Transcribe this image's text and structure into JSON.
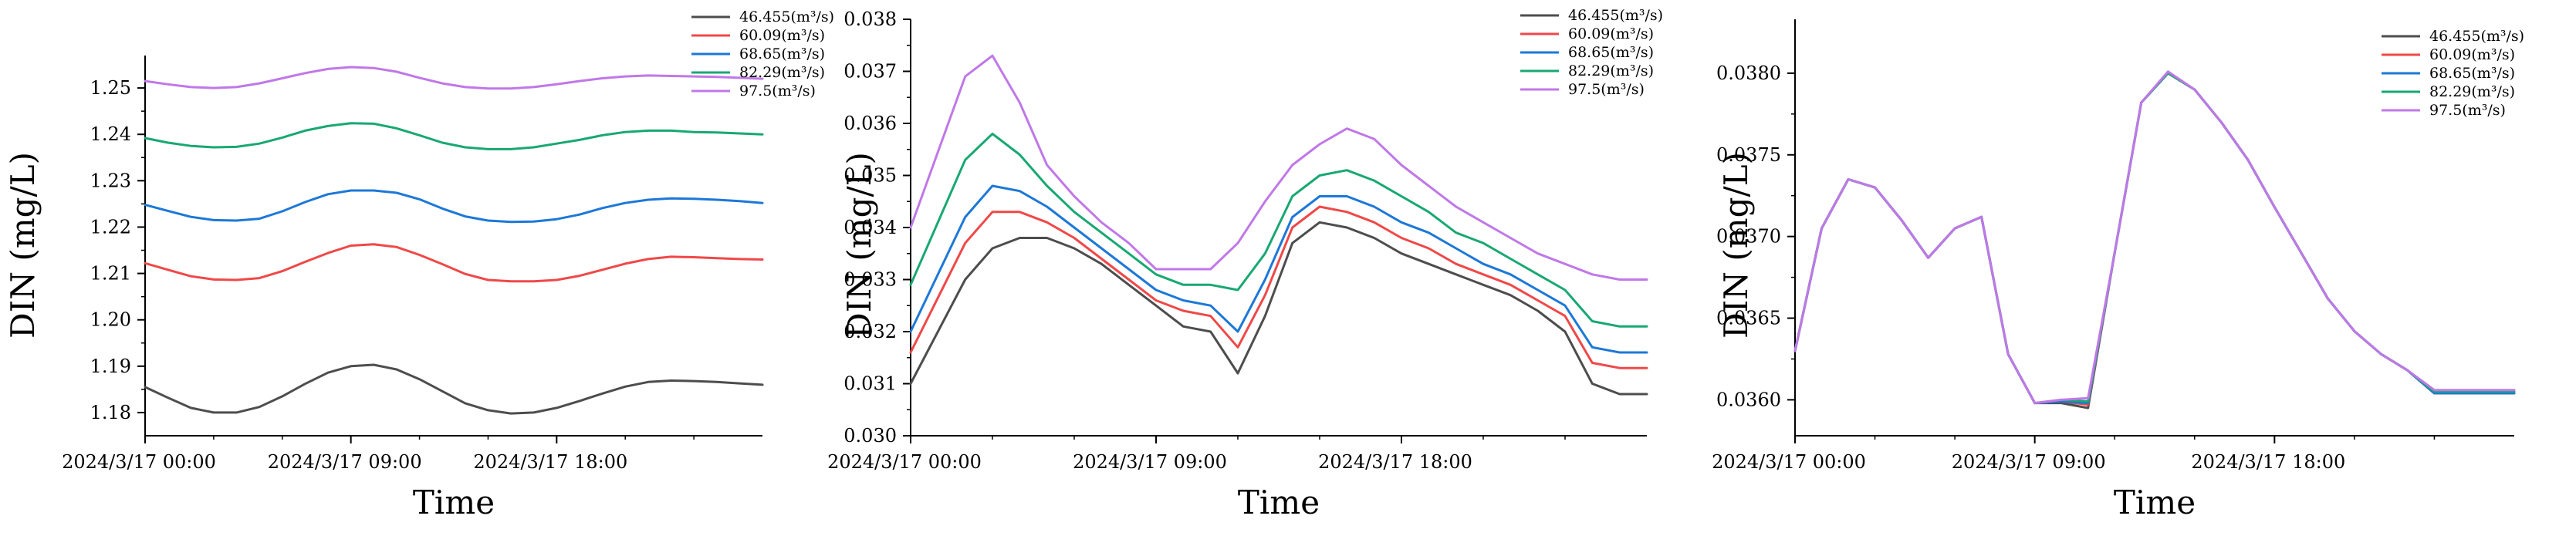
{
  "colors": {
    "s1": "#4d4d4d",
    "s2": "#f04848",
    "s3": "#1c78d8",
    "s4": "#18a872",
    "s5": "#c078e8"
  },
  "chart_data": [
    {
      "type": "line",
      "xlabel": "Time",
      "ylabel": "DIN (mg/L)",
      "ylim": [
        1.175,
        1.257
      ],
      "yticks": [
        1.18,
        1.19,
        1.2,
        1.21,
        1.22,
        1.23,
        1.24,
        1.25
      ],
      "ytick_labels": [
        "1.18",
        "1.19",
        "1.20",
        "1.21",
        "1.22",
        "1.23",
        "1.24",
        "1.25"
      ],
      "xlim": [
        0,
        27
      ],
      "xticks": [
        0,
        9,
        18
      ],
      "xtick_labels": [
        "2024/3/17  00:00",
        "2024/3/17  09:00",
        "2024/3/17  18:00"
      ],
      "legend_position": "top-right",
      "grid": false,
      "x": [
        0,
        1,
        2,
        3,
        4,
        5,
        6,
        7,
        8,
        9,
        10,
        11,
        12,
        13,
        14,
        15,
        16,
        17,
        18,
        19,
        20,
        21,
        22,
        23,
        24,
        25,
        26,
        27
      ],
      "series": [
        {
          "name": "46.455(m³/s)",
          "color_key": "s1",
          "values": [
            1.1855,
            1.1832,
            1.181,
            1.18,
            1.18,
            1.1812,
            1.1835,
            1.1862,
            1.1886,
            1.19,
            1.1903,
            1.1893,
            1.1872,
            1.1846,
            1.182,
            1.1805,
            1.1798,
            1.18,
            1.181,
            1.1825,
            1.1841,
            1.1856,
            1.1866,
            1.1869,
            1.1868,
            1.1866,
            1.1863,
            1.186
          ]
        },
        {
          "name": "60.09(m³/s)",
          "color_key": "s2",
          "values": [
            1.2122,
            1.2108,
            1.2094,
            1.2087,
            1.2086,
            1.209,
            1.2105,
            1.2125,
            1.2144,
            1.216,
            1.2163,
            1.2157,
            1.214,
            1.212,
            1.2099,
            1.2086,
            1.2083,
            1.2083,
            1.2086,
            1.2095,
            1.2108,
            1.2121,
            1.2131,
            1.2136,
            1.2135,
            1.2133,
            1.2131,
            1.213
          ]
        },
        {
          "name": "68.65(m³/s)",
          "color_key": "s3",
          "values": [
            1.2248,
            1.2235,
            1.2222,
            1.2215,
            1.2214,
            1.2218,
            1.2234,
            1.2254,
            1.2271,
            1.2279,
            1.2279,
            1.2274,
            1.226,
            1.224,
            1.2223,
            1.2214,
            1.2211,
            1.2212,
            1.2217,
            1.2227,
            1.2241,
            1.2252,
            1.2259,
            1.2262,
            1.2261,
            1.2259,
            1.2256,
            1.2252
          ]
        },
        {
          "name": "82.29(m³/s)",
          "color_key": "s4",
          "values": [
            1.2392,
            1.2382,
            1.2375,
            1.2372,
            1.2373,
            1.238,
            1.2393,
            1.2408,
            1.2418,
            1.2424,
            1.2423,
            1.2413,
            1.2398,
            1.2382,
            1.2372,
            1.2368,
            1.2368,
            1.2372,
            1.238,
            1.2388,
            1.2398,
            1.2405,
            1.2408,
            1.2408,
            1.2405,
            1.2404,
            1.2402,
            1.24
          ]
        },
        {
          "name": "97.5(m³/s)",
          "color_key": "s5",
          "values": [
            1.2515,
            1.2508,
            1.2502,
            1.25,
            1.2502,
            1.251,
            1.2521,
            1.2532,
            1.2541,
            1.2545,
            1.2543,
            1.2535,
            1.2522,
            1.251,
            1.2502,
            1.2499,
            1.2499,
            1.2502,
            1.2508,
            1.2515,
            1.2521,
            1.2525,
            1.2527,
            1.2526,
            1.2525,
            1.2524,
            1.2522,
            1.252
          ]
        }
      ]
    },
    {
      "type": "line",
      "xlabel": "Time",
      "ylabel": "DIN (mg/L)",
      "ylim": [
        0.03,
        0.038
      ],
      "yticks": [
        0.03,
        0.031,
        0.032,
        0.033,
        0.034,
        0.035,
        0.036,
        0.037,
        0.038
      ],
      "ytick_labels": [
        "0.030",
        "0.031",
        "0.032",
        "0.033",
        "0.034",
        "0.035",
        "0.036",
        "0.037",
        "0.038"
      ],
      "xlim": [
        0,
        27
      ],
      "xticks": [
        0,
        9,
        18
      ],
      "xtick_labels": [
        "2024/3/17  00:00",
        "2024/3/17  09:00",
        "2024/3/17  18:00"
      ],
      "legend_position": "top-right",
      "grid": false,
      "x": [
        0,
        2,
        3,
        4,
        5,
        6,
        7,
        8,
        9,
        10,
        11,
        12,
        13,
        14,
        15,
        16,
        17,
        18,
        19,
        20,
        21,
        22,
        23,
        24,
        25,
        26,
        27
      ],
      "series": [
        {
          "name": "46.455(m³/s)",
          "color_key": "s1",
          "values": [
            0.031,
            0.033,
            0.0336,
            0.0338,
            0.0338,
            0.0336,
            0.0333,
            0.0329,
            0.0325,
            0.0321,
            0.032,
            0.0312,
            0.0323,
            0.0337,
            0.0341,
            0.034,
            0.0338,
            0.0335,
            0.0333,
            0.0331,
            0.0329,
            0.0327,
            0.0324,
            0.032,
            0.031,
            0.0308,
            0.0308
          ]
        },
        {
          "name": "60.09(m³/s)",
          "color_key": "s2",
          "values": [
            0.0316,
            0.0337,
            0.0343,
            0.0343,
            0.0341,
            0.0338,
            0.0334,
            0.033,
            0.0326,
            0.0324,
            0.0323,
            0.0317,
            0.0327,
            0.034,
            0.0344,
            0.0343,
            0.0341,
            0.0338,
            0.0336,
            0.0333,
            0.0331,
            0.0329,
            0.0326,
            0.0323,
            0.0314,
            0.0313,
            0.0313
          ]
        },
        {
          "name": "68.65(m³/s)",
          "color_key": "s3",
          "values": [
            0.032,
            0.0342,
            0.0348,
            0.0347,
            0.0344,
            0.034,
            0.0336,
            0.0332,
            0.0328,
            0.0326,
            0.0325,
            0.032,
            0.033,
            0.0342,
            0.0346,
            0.0346,
            0.0344,
            0.0341,
            0.0339,
            0.0336,
            0.0333,
            0.0331,
            0.0328,
            0.0325,
            0.0317,
            0.0316,
            0.0316
          ]
        },
        {
          "name": "82.29(m³/s)",
          "color_key": "s4",
          "values": [
            0.0329,
            0.0353,
            0.0358,
            0.0354,
            0.0348,
            0.0343,
            0.0339,
            0.0335,
            0.0331,
            0.0329,
            0.0329,
            0.0328,
            0.0335,
            0.0346,
            0.035,
            0.0351,
            0.0349,
            0.0346,
            0.0343,
            0.0339,
            0.0337,
            0.0334,
            0.0331,
            0.0328,
            0.0322,
            0.0321,
            0.0321
          ]
        },
        {
          "name": "97.5(m³/s)",
          "color_key": "s5",
          "values": [
            0.034,
            0.0369,
            0.0373,
            0.0364,
            0.0352,
            0.0346,
            0.0341,
            0.0337,
            0.0332,
            0.0332,
            0.0332,
            0.0337,
            0.0345,
            0.0352,
            0.0356,
            0.0359,
            0.0357,
            0.0352,
            0.0348,
            0.0344,
            0.0341,
            0.0338,
            0.0335,
            0.0333,
            0.0331,
            0.033,
            0.033
          ]
        }
      ]
    },
    {
      "type": "line",
      "xlabel": "Time",
      "ylabel": "DIN (mg/L)",
      "ylim": [
        0.03578,
        0.03833
      ],
      "yticks": [
        0.036,
        0.0365,
        0.037,
        0.0375,
        0.038
      ],
      "ytick_labels": [
        "0.0360",
        "0.0365",
        "0.0370",
        "0.0375",
        "0.0380"
      ],
      "xlim": [
        0,
        27
      ],
      "xticks": [
        0,
        9,
        18
      ],
      "xtick_labels": [
        "2024/3/17  00:00",
        "2024/3/17  09:00",
        "2024/3/17  18:00"
      ],
      "legend_position": "top-right",
      "grid": false,
      "x": [
        0,
        1,
        2,
        3,
        4,
        5,
        6,
        7,
        8,
        9,
        10,
        11,
        12,
        13,
        14,
        15,
        16,
        17,
        18,
        19,
        20,
        21,
        22,
        23,
        24,
        25,
        26,
        27
      ],
      "series": [
        {
          "name": "46.455(m³/s)",
          "color_key": "s1",
          "values": [
            0.0363,
            0.03705,
            0.03735,
            0.0373,
            0.0371,
            0.03687,
            0.03705,
            0.03712,
            0.03628,
            0.03598,
            0.03598,
            0.03595,
            0.0369,
            0.03782,
            0.038,
            0.0379,
            0.0377,
            0.03747,
            0.03718,
            0.0369,
            0.03662,
            0.03642,
            0.03628,
            0.03618,
            0.03604,
            0.03604,
            0.03604,
            0.03604
          ]
        },
        {
          "name": "60.09(m³/s)",
          "color_key": "s2",
          "values": [
            0.0363,
            0.03705,
            0.03735,
            0.0373,
            0.0371,
            0.03687,
            0.03705,
            0.03712,
            0.03628,
            0.03598,
            0.03599,
            0.03597,
            0.0369,
            0.03782,
            0.038,
            0.0379,
            0.0377,
            0.03747,
            0.03718,
            0.0369,
            0.03662,
            0.03642,
            0.03628,
            0.03618,
            0.03604,
            0.03604,
            0.03604,
            0.03604
          ]
        },
        {
          "name": "68.65(m³/s)",
          "color_key": "s3",
          "values": [
            0.0363,
            0.03705,
            0.03735,
            0.0373,
            0.0371,
            0.03687,
            0.03705,
            0.03712,
            0.03628,
            0.03598,
            0.03599,
            0.03598,
            0.0369,
            0.03782,
            0.038,
            0.0379,
            0.0377,
            0.03747,
            0.03718,
            0.0369,
            0.03662,
            0.03642,
            0.03628,
            0.03618,
            0.03604,
            0.03604,
            0.03604,
            0.03604
          ]
        },
        {
          "name": "82.29(m³/s)",
          "color_key": "s4",
          "values": [
            0.0363,
            0.03705,
            0.03735,
            0.0373,
            0.0371,
            0.03687,
            0.03705,
            0.03712,
            0.03628,
            0.03598,
            0.036,
            0.03599,
            0.0369,
            0.03782,
            0.038,
            0.0379,
            0.0377,
            0.03747,
            0.03718,
            0.0369,
            0.03662,
            0.03642,
            0.03628,
            0.03618,
            0.03605,
            0.03605,
            0.03605,
            0.03605
          ]
        },
        {
          "name": "97.5(m³/s)",
          "color_key": "s5",
          "values": [
            0.0363,
            0.03705,
            0.03735,
            0.0373,
            0.0371,
            0.03687,
            0.03705,
            0.03712,
            0.03628,
            0.03598,
            0.036,
            0.03601,
            0.0369,
            0.03782,
            0.03801,
            0.0379,
            0.0377,
            0.03747,
            0.03718,
            0.0369,
            0.03662,
            0.03642,
            0.03628,
            0.03618,
            0.03606,
            0.03606,
            0.03606,
            0.03606
          ]
        }
      ]
    }
  ]
}
